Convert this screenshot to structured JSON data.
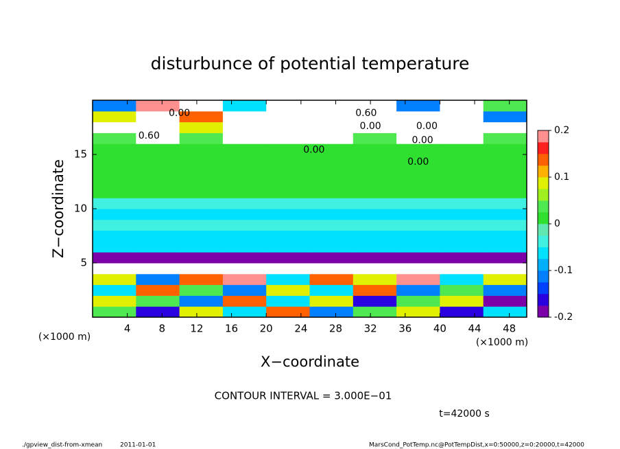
{
  "chart_data": {
    "type": "heatmap",
    "title": "disturbunce of potential temperature",
    "x_label": "X−coordinate",
    "y_label": "Z−coordinate",
    "x_unit_label": "(×1000 m)",
    "y_unit_label": "(×1000 m)",
    "xlim": [
      0,
      50
    ],
    "ylim": [
      0,
      20
    ],
    "xticks": [
      4,
      8,
      12,
      16,
      20,
      24,
      28,
      32,
      36,
      40,
      44,
      48
    ],
    "yticks": [
      5,
      10,
      15
    ],
    "x": [
      2.5,
      7.5,
      12.5,
      17.5,
      22.5,
      27.5,
      32.5,
      37.5,
      42.5,
      47.5
    ],
    "z": [
      0.5,
      1.5,
      2.5,
      3.5,
      4.5,
      5.5,
      6.5,
      7.5,
      8.5,
      9.5,
      10.5,
      11.5,
      12.5,
      13.5,
      14.5,
      15.5,
      16.5,
      17.5,
      18.5,
      19.5
    ],
    "values": [
      [
        0.05,
        -0.15,
        0.1,
        -0.05,
        0.15,
        -0.1,
        0.05,
        0.1,
        -0.15,
        -0.05
      ],
      [
        0.1,
        0.05,
        -0.1,
        0.15,
        -0.05,
        0.1,
        -0.15,
        0.05,
        0.1,
        -0.2
      ],
      [
        -0.05,
        0.15,
        0.05,
        -0.1,
        0.1,
        -0.05,
        0.15,
        -0.1,
        0.05,
        -0.1
      ],
      [
        0.1,
        -0.1,
        0.15,
        0.2,
        -0.05,
        0.15,
        0.1,
        0.2,
        -0.05,
        0.1
      ],
      [
        0.3,
        0.3,
        0.3,
        0.3,
        0.3,
        0.3,
        0.3,
        0.3,
        0.3,
        0.3
      ],
      [
        -0.18,
        -0.18,
        -0.18,
        -0.18,
        -0.18,
        -0.18,
        -0.18,
        -0.18,
        -0.18,
        -0.18
      ],
      [
        -0.06,
        -0.06,
        -0.06,
        -0.06,
        -0.06,
        -0.06,
        -0.06,
        -0.06,
        -0.06,
        -0.06
      ],
      [
        -0.05,
        -0.05,
        -0.05,
        -0.05,
        -0.05,
        -0.05,
        -0.05,
        -0.05,
        -0.05,
        -0.05
      ],
      [
        -0.03,
        -0.03,
        -0.03,
        -0.03,
        -0.03,
        -0.03,
        -0.03,
        -0.03,
        -0.03,
        -0.03
      ],
      [
        -0.07,
        -0.07,
        -0.07,
        -0.07,
        -0.07,
        -0.07,
        -0.07,
        -0.07,
        -0.07,
        -0.07
      ],
      [
        -0.04,
        -0.04,
        -0.04,
        -0.04,
        -0.04,
        -0.04,
        -0.04,
        -0.04,
        -0.04,
        -0.04
      ],
      [
        0.01,
        0.01,
        0.01,
        0.01,
        0.01,
        0.01,
        0.01,
        0.01,
        0.01,
        0.01
      ],
      [
        0.01,
        0.01,
        0.01,
        0.01,
        0.01,
        0.01,
        0.01,
        0.01,
        0.01,
        0.01
      ],
      [
        0.01,
        0.01,
        0.01,
        0.01,
        0.01,
        0.01,
        0.01,
        0.01,
        0.01,
        0.01
      ],
      [
        0.01,
        0.01,
        0.01,
        0.01,
        0.01,
        0.01,
        0.01,
        0.01,
        0.01,
        0.01
      ],
      [
        0.02,
        0.02,
        0.02,
        0.02,
        0.02,
        0.02,
        0.02,
        0.02,
        0.02,
        0.02
      ],
      [
        0.05,
        0.3,
        0.05,
        0.3,
        0.3,
        0.3,
        0.05,
        0.3,
        0.3,
        0.05
      ],
      [
        0.3,
        0.3,
        0.1,
        0.3,
        0.3,
        0.3,
        0.3,
        0.3,
        0.3,
        0.3
      ],
      [
        0.1,
        0.3,
        0.15,
        0.3,
        0.3,
        0.3,
        0.3,
        0.3,
        0.3,
        -0.1
      ],
      [
        -0.1,
        0.2,
        0.3,
        -0.05,
        0.3,
        0.3,
        0.3,
        -0.1,
        0.3,
        0.05
      ]
    ],
    "colorbar": {
      "lim": [
        -0.2,
        0.2
      ],
      "levels": [
        -0.2,
        -0.175,
        -0.15,
        -0.125,
        -0.1,
        -0.075,
        -0.05,
        -0.025,
        0,
        0.025,
        0.05,
        0.075,
        0.1,
        0.125,
        0.15,
        0.175,
        0.2
      ],
      "colors": [
        "#7b00a8",
        "#2a00e0",
        "#0040ff",
        "#0080ff",
        "#00b0ff",
        "#00e0ff",
        "#40f0e0",
        "#60e8b0",
        "#30e030",
        "#50e850",
        "#a0f020",
        "#e0f000",
        "#ffb000",
        "#ff6000",
        "#ff2020",
        "#ff9090"
      ],
      "ticks": [
        0.2,
        0.1,
        0,
        -0.1,
        -0.2
      ]
    },
    "out_of_range_color": "#ffffff",
    "contour_labels": [
      {
        "text": "0.00",
        "x": 10,
        "z": 18.8
      },
      {
        "text": "0.60",
        "x": 31.5,
        "z": 18.8
      },
      {
        "text": "0.00",
        "x": 32,
        "z": 17.6
      },
      {
        "text": "0.00",
        "x": 38.5,
        "z": 17.6
      },
      {
        "text": "0.60",
        "x": 6.5,
        "z": 16.7
      },
      {
        "text": "0.00",
        "x": 38,
        "z": 16.3
      },
      {
        "text": "0.00",
        "x": 25.5,
        "z": 15.4
      },
      {
        "text": "0.00",
        "x": 37.5,
        "z": 14.3
      }
    ],
    "contour_interval_text": "CONTOUR INTERVAL = 3.000E−01",
    "time_text": "t=42000 s",
    "footer_left": "./gpview_dist-from-xmean",
    "footer_date": "2011-01-01",
    "footer_right": "MarsCond_PotTemp.nc@PotTempDist,x=0:50000,z=0:20000,t=42000"
  }
}
